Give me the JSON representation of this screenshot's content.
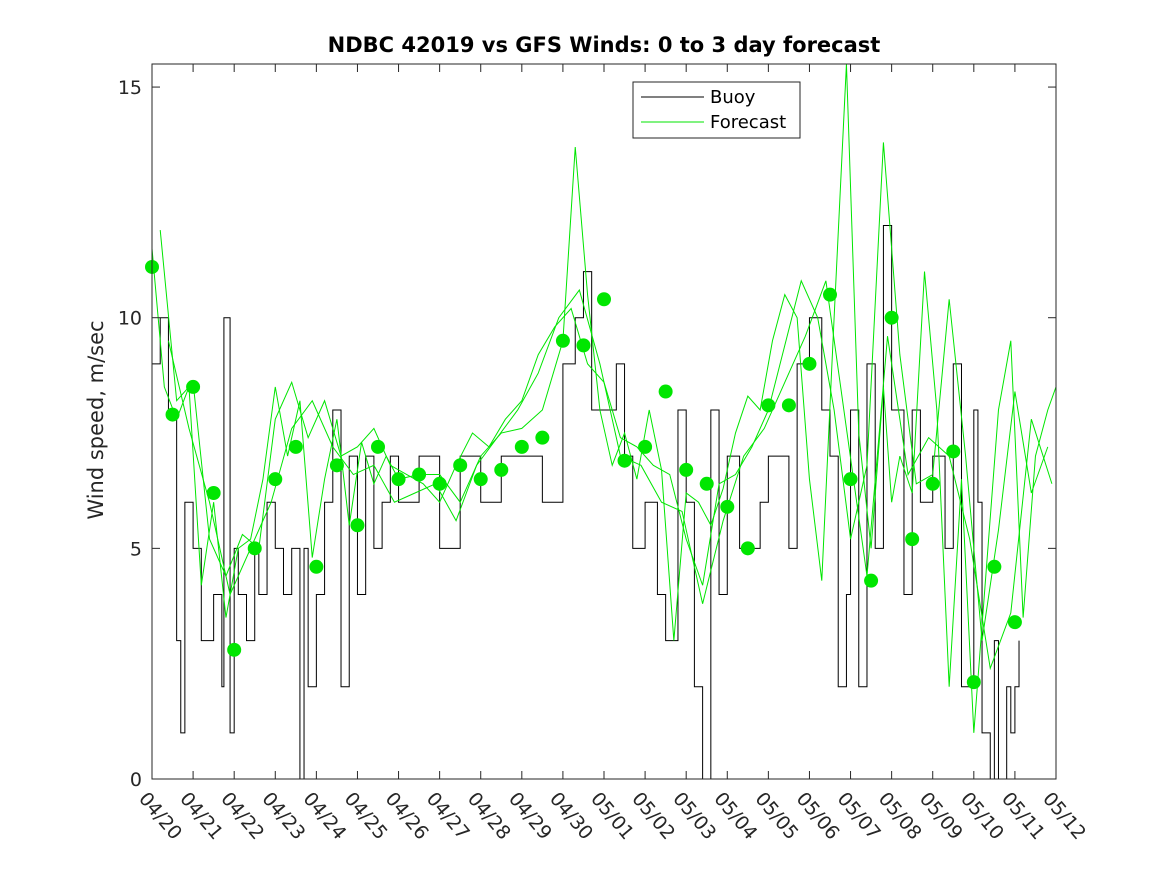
{
  "chart_data": {
    "type": "line",
    "title": "NDBC 42019 vs GFS Winds: 0 to 3 day forecast",
    "xlabel": "",
    "ylabel": "Wind speed, m/sec",
    "xlim": [
      "04/20",
      "05/12"
    ],
    "ylim": [
      0,
      15.5
    ],
    "y_ticks": [
      0,
      5,
      10,
      15
    ],
    "x_ticks": [
      "04/20",
      "04/21",
      "04/22",
      "04/23",
      "04/24",
      "04/25",
      "04/26",
      "04/27",
      "04/28",
      "04/29",
      "04/30",
      "05/01",
      "05/02",
      "05/03",
      "05/04",
      "05/05",
      "05/06",
      "05/07",
      "05/08",
      "05/09",
      "05/10",
      "05/11",
      "05/12"
    ],
    "legend": {
      "placement": "top-right",
      "entries": [
        {
          "name": "Buoy",
          "color": "#000000"
        },
        {
          "name": "Forecast",
          "color": "#00e600"
        }
      ]
    },
    "series": [
      {
        "name": "Buoy",
        "color": "#000000",
        "x_days": [
          0.0,
          0.2,
          0.4,
          0.6,
          0.7,
          0.8,
          1.0,
          1.2,
          1.3,
          1.5,
          1.7,
          1.75,
          1.9,
          2.0,
          2.1,
          2.3,
          2.5,
          2.6,
          2.8,
          3.0,
          3.2,
          3.4,
          3.6,
          3.7,
          3.8,
          4.0,
          4.2,
          4.4,
          4.6,
          4.8,
          5.0,
          5.2,
          5.4,
          5.6,
          5.8,
          6.0,
          6.5,
          7.0,
          7.5,
          8.0,
          8.5,
          9.0,
          9.5,
          10.0,
          10.3,
          10.5,
          10.7,
          11.0,
          11.3,
          11.5,
          11.7,
          12.0,
          12.3,
          12.5,
          12.8,
          13.0,
          13.2,
          13.4,
          13.6,
          13.8,
          14.0,
          14.3,
          14.5,
          14.8,
          15.0,
          15.3,
          15.5,
          15.7,
          16.0,
          16.3,
          16.5,
          16.7,
          16.9,
          17.0,
          17.2,
          17.4,
          17.6,
          17.8,
          18.0,
          18.3,
          18.5,
          18.7,
          19.0,
          19.3,
          19.5,
          19.7,
          20.0,
          20.1,
          20.2,
          20.4,
          20.5,
          20.6,
          20.8,
          20.9,
          21.0,
          21.1
        ],
        "values": [
          9,
          10,
          8,
          3,
          1,
          6,
          5,
          3,
          3,
          4,
          2,
          10,
          1,
          5,
          4,
          3,
          5,
          4,
          6,
          5,
          4,
          5,
          0,
          5,
          2,
          4,
          6,
          8,
          2,
          7,
          4,
          7,
          5,
          6,
          7,
          6,
          7,
          5,
          7,
          6,
          7,
          7,
          6,
          9,
          10,
          11,
          8,
          8,
          9,
          7,
          5,
          6,
          4,
          3,
          8,
          6,
          2,
          0,
          8,
          4,
          7,
          5,
          5,
          6,
          7,
          7,
          5,
          9,
          10,
          8,
          7,
          2,
          4,
          8,
          2,
          9,
          5,
          12,
          8,
          4,
          8,
          6,
          7,
          5,
          9,
          2,
          8,
          6,
          1,
          0,
          3,
          0,
          2,
          1,
          2,
          3
        ]
      },
      {
        "name": "Forecast",
        "color": "#00e600",
        "x_days": [
          0.0,
          0.3,
          0.6,
          0.9,
          1.2,
          1.5,
          1.8,
          2.1,
          2.4,
          2.7,
          3.0,
          3.3,
          3.6,
          3.9,
          4.2,
          4.5,
          4.8,
          5.1,
          5.4,
          5.7,
          6.0,
          6.5,
          7.0,
          7.5,
          8.0,
          8.5,
          9.0,
          9.5,
          10.0,
          10.3,
          10.6,
          10.9,
          11.2,
          11.5,
          11.8,
          12.1,
          12.4,
          12.7,
          13.0,
          13.3,
          13.6,
          13.9,
          14.2,
          14.5,
          14.8,
          15.1,
          15.4,
          15.7,
          16.0,
          16.3,
          16.6,
          16.9,
          17.2,
          17.5,
          17.8,
          18.0,
          18.2,
          18.5,
          18.8,
          19.1,
          19.4,
          19.7,
          20.0,
          20.3,
          20.6,
          20.9,
          21.2,
          21.5,
          21.8,
          22.0
        ],
        "values": [
          11.5,
          8.5,
          7.8,
          8.5,
          4.2,
          6.0,
          3.5,
          5.0,
          5.2,
          6.5,
          8.5,
          7.0,
          8.2,
          4.8,
          6.5,
          7.8,
          5.5,
          7.3,
          6.4,
          7.0,
          6.5,
          6.6,
          6.6,
          6.0,
          7.0,
          7.5,
          7.6,
          8.0,
          9.5,
          13.7,
          10.5,
          8.0,
          6.8,
          7.5,
          6.5,
          8.0,
          6.7,
          3.0,
          6.2,
          6.0,
          5.5,
          6.3,
          7.5,
          8.3,
          8.0,
          9.5,
          10.5,
          10.0,
          6.5,
          4.3,
          10.0,
          15.5,
          7.5,
          5.0,
          8.5,
          6.0,
          7.0,
          6.2,
          11.0,
          8.0,
          2.0,
          6.5,
          1.0,
          4.5,
          8.0,
          9.5,
          3.5,
          7.0,
          8.0,
          8.5
        ]
      },
      {
        "name": "Forecast",
        "color": "#00e600",
        "x_days": [
          0.2,
          0.6,
          1.0,
          1.4,
          1.8,
          2.2,
          2.6,
          3.0,
          3.4,
          3.8,
          4.2,
          4.6,
          5.0,
          5.4,
          5.8,
          6.2,
          6.6,
          7.0,
          7.4,
          7.8,
          8.2,
          8.6,
          9.0,
          9.4,
          9.8,
          10.2,
          10.6,
          11.0,
          11.4,
          11.8,
          12.2,
          12.6,
          13.0,
          13.4,
          13.8,
          14.2,
          14.6,
          15.0,
          15.4,
          15.8,
          16.2,
          16.6,
          17.0,
          17.4,
          17.8,
          18.2,
          18.6,
          19.0,
          19.4,
          19.8,
          20.2,
          20.6,
          21.0,
          21.4,
          21.8
        ],
        "values": [
          11.9,
          8.2,
          8.6,
          5.2,
          4.4,
          5.3,
          5.0,
          7.8,
          8.6,
          7.4,
          8.2,
          7.0,
          7.2,
          7.6,
          6.8,
          6.6,
          6.4,
          6.0,
          6.8,
          7.5,
          7.2,
          7.8,
          8.2,
          9.2,
          9.8,
          10.2,
          9.0,
          8.6,
          7.4,
          7.2,
          6.8,
          6.6,
          5.2,
          4.2,
          6.4,
          6.6,
          7.2,
          8.0,
          9.4,
          10.8,
          10.0,
          8.0,
          5.2,
          6.8,
          13.8,
          9.2,
          6.4,
          6.6,
          10.4,
          7.0,
          3.0,
          5.4,
          8.4,
          6.2,
          7.2
        ]
      },
      {
        "name": "Forecast",
        "color": "#00e600",
        "x_days": [
          0.4,
          0.9,
          1.4,
          1.9,
          2.4,
          2.9,
          3.4,
          3.9,
          4.4,
          4.9,
          5.4,
          5.9,
          6.4,
          6.9,
          7.4,
          7.9,
          8.4,
          8.9,
          9.4,
          9.9,
          10.4,
          10.9,
          11.4,
          11.9,
          12.4,
          12.9,
          13.4,
          13.9,
          14.4,
          14.9,
          15.4,
          15.9,
          16.4,
          16.9,
          17.4,
          17.9,
          18.4,
          18.9,
          19.4,
          19.9,
          20.4,
          20.9,
          21.4,
          21.9
        ],
        "values": [
          9.5,
          7.6,
          6.0,
          4.0,
          5.0,
          6.0,
          7.6,
          8.2,
          7.2,
          6.6,
          6.8,
          6.0,
          6.2,
          6.4,
          5.6,
          6.8,
          7.4,
          8.0,
          8.8,
          10.0,
          10.6,
          9.0,
          7.0,
          6.8,
          6.0,
          5.8,
          3.8,
          5.6,
          7.0,
          7.6,
          8.6,
          9.6,
          10.8,
          7.6,
          4.4,
          9.6,
          6.6,
          7.4,
          7.0,
          5.2,
          2.4,
          3.6,
          7.8,
          6.4
        ]
      }
    ],
    "forecast_markers": {
      "x_days": [
        0.0,
        0.5,
        1.0,
        1.5,
        2.0,
        2.5,
        3.0,
        3.5,
        4.0,
        4.5,
        5.0,
        5.5,
        6.0,
        6.5,
        7.0,
        7.5,
        8.0,
        8.5,
        9.0,
        9.5,
        10.0,
        10.5,
        11.0,
        11.5,
        12.0,
        12.5,
        13.0,
        13.5,
        14.0,
        14.5,
        15.0,
        15.5,
        16.0,
        16.5,
        17.0,
        17.5,
        18.0,
        18.5,
        19.0,
        19.5,
        20.0,
        20.5,
        21.0
      ],
      "values": [
        11.1,
        7.9,
        8.5,
        6.2,
        2.8,
        5.0,
        6.5,
        7.2,
        4.6,
        6.8,
        5.5,
        7.2,
        6.5,
        6.6,
        6.4,
        6.8,
        6.5,
        6.7,
        7.2,
        7.4,
        9.5,
        9.4,
        10.4,
        6.9,
        7.2,
        8.4,
        6.7,
        6.4,
        5.9,
        5.0,
        8.1,
        8.1,
        9.0,
        10.5,
        6.5,
        4.3,
        10.0,
        5.2,
        6.4,
        7.1,
        2.1,
        4.6,
        3.4
      ]
    }
  }
}
